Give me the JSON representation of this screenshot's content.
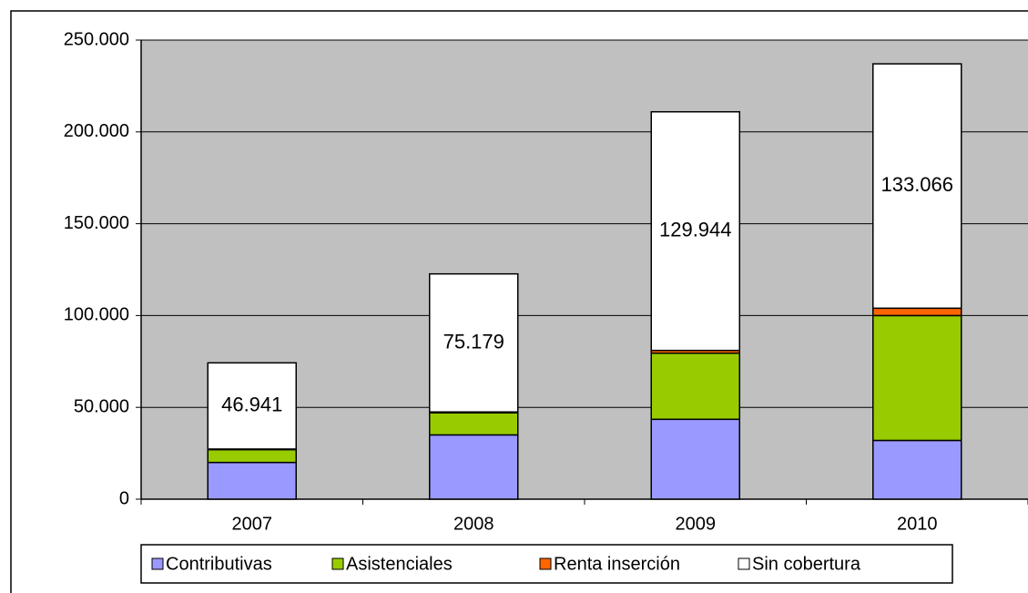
{
  "chart_data": {
    "type": "stacked_bar",
    "categories": [
      "2007",
      "2008",
      "2009",
      "2010"
    ],
    "series": [
      {
        "name": "Contributivas",
        "color": "#9999ff",
        "values": [
          20000,
          35000,
          43500,
          32000
        ]
      },
      {
        "name": "Asistenciales",
        "color": "#99cc00",
        "values": [
          7000,
          12000,
          36000,
          68000
        ]
      },
      {
        "name": "Renta inserción",
        "color": "#ff6600",
        "values": [
          300,
          500,
          1500,
          4000
        ]
      },
      {
        "name": "Sin cobertura",
        "color": "#ffffff",
        "values": [
          46941,
          75179,
          129944,
          133066
        ],
        "value_labels": [
          "46.941",
          "75.179",
          "129.944",
          "133.066"
        ]
      }
    ],
    "ylim": [
      0,
      250000
    ],
    "yticks": [
      0,
      {
        "value": 50000,
        "label": "50.000"
      },
      {
        "value": 100000,
        "label": "100.000"
      },
      {
        "value": 150000,
        "label": "150.000"
      },
      {
        "value": 200000,
        "label": "200.000"
      },
      {
        "value": 250000,
        "label": "250.000"
      }
    ],
    "grid": true,
    "legend": "bottom"
  }
}
